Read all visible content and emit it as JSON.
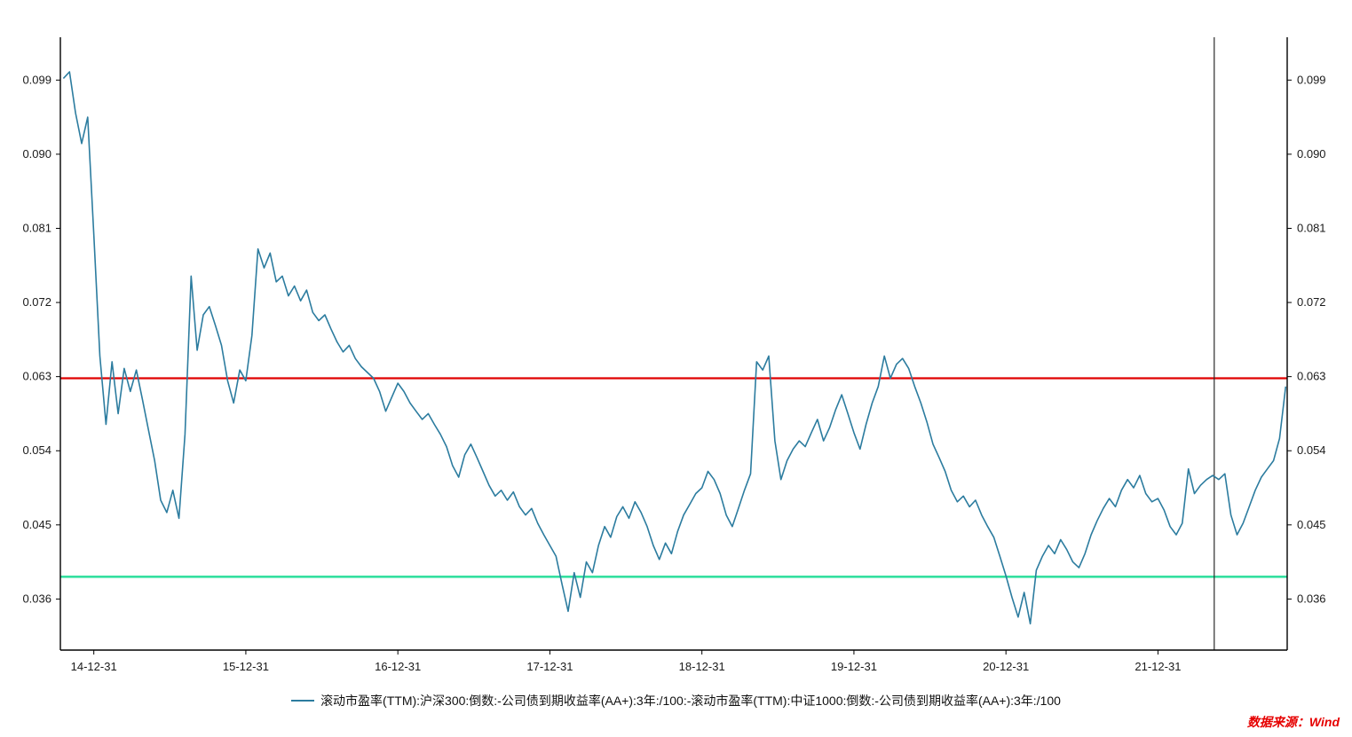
{
  "theme": {
    "background": "#ffffff",
    "series_color": "#2c7c9f",
    "red_line_color": "#e00000",
    "green_line_color": "#35e0a0",
    "vline_color": "#2b2b2b",
    "axis_color": "#000000",
    "tick_text_color": "#1a1a1a",
    "source_color": "#e60000"
  },
  "chart_data": {
    "type": "line",
    "title": "",
    "xlabel": "",
    "ylabel": "",
    "grid": false,
    "legend_position": "bottom-center",
    "xlim": [
      2014.78,
      2022.85
    ],
    "ylim": [
      0.0298,
      0.1042
    ],
    "y_ticks": [
      0.036,
      0.045,
      0.054,
      0.063,
      0.072,
      0.081,
      0.09,
      0.099
    ],
    "x_ticks": [
      {
        "t": 2015,
        "label": "14-12-31"
      },
      {
        "t": 2016,
        "label": "15-12-31"
      },
      {
        "t": 2017,
        "label": "16-12-31"
      },
      {
        "t": 2018,
        "label": "17-12-31"
      },
      {
        "t": 2019,
        "label": "18-12-31"
      },
      {
        "t": 2020,
        "label": "19-12-31"
      },
      {
        "t": 2021,
        "label": "20-12-31"
      },
      {
        "t": 2022,
        "label": "21-12-31"
      }
    ],
    "reference_lines": {
      "red_horizontal_value": 0.0628,
      "green_horizontal_value": 0.0387,
      "vertical_line_t": 2022.37
    },
    "series": [
      {
        "name": "滚动市盈率(TTM):沪深300:倒数:-公司债到期收益率(AA+):3年:/100:-滚动市盈率(TTM):中证1000:倒数:-公司债到期收益率(AA+):3年:/100",
        "t0": 2014.8,
        "dt": 0.04,
        "scale": 0.0001,
        "values": [
          992,
          1000,
          950,
          913,
          945,
          802,
          655,
          572,
          648,
          585,
          640,
          612,
          638,
          602,
          565,
          528,
          480,
          465,
          492,
          458,
          560,
          752,
          662,
          705,
          715,
          692,
          668,
          625,
          598,
          638,
          625,
          680,
          785,
          762,
          780,
          745,
          752,
          728,
          740,
          722,
          735,
          708,
          698,
          705,
          688,
          672,
          660,
          668,
          652,
          642,
          635,
          628,
          612,
          588,
          605,
          622,
          612,
          598,
          588,
          578,
          585,
          572,
          560,
          545,
          522,
          508,
          535,
          548,
          532,
          515,
          498,
          485,
          492,
          480,
          490,
          472,
          462,
          470,
          452,
          438,
          425,
          412,
          378,
          345,
          392,
          362,
          405,
          392,
          425,
          448,
          435,
          460,
          472,
          458,
          478,
          465,
          448,
          425,
          408,
          428,
          415,
          442,
          462,
          475,
          488,
          495,
          515,
          505,
          488,
          462,
          448,
          470,
          492,
          512,
          648,
          638,
          655,
          552,
          505,
          528,
          542,
          552,
          545,
          562,
          578,
          552,
          568,
          590,
          608,
          585,
          562,
          542,
          572,
          598,
          618,
          655,
          628,
          645,
          652,
          640,
          618,
          598,
          575,
          548,
          532,
          515,
          492,
          478,
          485,
          472,
          480,
          462,
          448,
          435,
          412,
          388,
          362,
          338,
          368,
          330,
          395,
          412,
          425,
          415,
          432,
          420,
          405,
          398,
          415,
          438,
          455,
          470,
          482,
          472,
          492,
          505,
          495,
          510,
          488,
          478,
          482,
          468,
          448,
          438,
          452,
          518,
          488,
          498,
          505,
          510,
          505,
          512,
          462,
          438,
          452,
          472,
          492,
          508,
          518,
          528,
          555,
          618
        ]
      }
    ],
    "legend": "滚动市盈率(TTM):沪深300:倒数:-公司债到期收益率(AA+):3年:/100:-滚动市盈率(TTM):中证1000:倒数:-公司债到期收益率(AA+):3年:/100",
    "source": "数据来源：Wind"
  }
}
